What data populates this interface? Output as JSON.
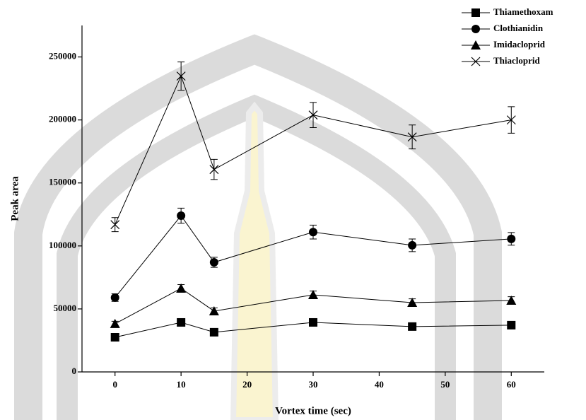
{
  "chart_data": {
    "type": "line",
    "xlabel": "Vortex time (sec)",
    "ylabel": "Peak area",
    "x": [
      0,
      10,
      15,
      30,
      45,
      60
    ],
    "series": [
      {
        "name": "Thiamethoxam",
        "marker": "square",
        "color": "#000000",
        "values": [
          27500,
          39300,
          31500,
          39300,
          36000,
          37100
        ],
        "errors": [
          1500,
          1500,
          1500,
          1500,
          1500,
          1500
        ]
      },
      {
        "name": "Clothianidin",
        "marker": "circle",
        "color": "#000000",
        "values": [
          59000,
          124000,
          87000,
          111000,
          100500,
          105600
        ],
        "errors": [
          3000,
          6000,
          4000,
          5500,
          5000,
          5000
        ]
      },
      {
        "name": "Imidacloprid",
        "marker": "triangle",
        "color": "#000000",
        "values": [
          38200,
          66300,
          48300,
          61200,
          55000,
          56700
        ],
        "errors": [
          2000,
          3000,
          2500,
          3000,
          3000,
          3000
        ]
      },
      {
        "name": "Thiacloprid",
        "marker": "x",
        "color": "#000000",
        "values": [
          116900,
          234800,
          160700,
          203900,
          186500,
          200000
        ],
        "errors": [
          5600,
          11200,
          8000,
          10000,
          9500,
          10500
        ]
      }
    ],
    "xlim": [
      -5,
      65
    ],
    "xticks": [
      0,
      10,
      20,
      30,
      40,
      50,
      60
    ],
    "ylim": [
      0,
      275000
    ],
    "yticks": [
      0,
      50000,
      100000,
      150000,
      200000,
      250000
    ],
    "legend": "upper right"
  }
}
